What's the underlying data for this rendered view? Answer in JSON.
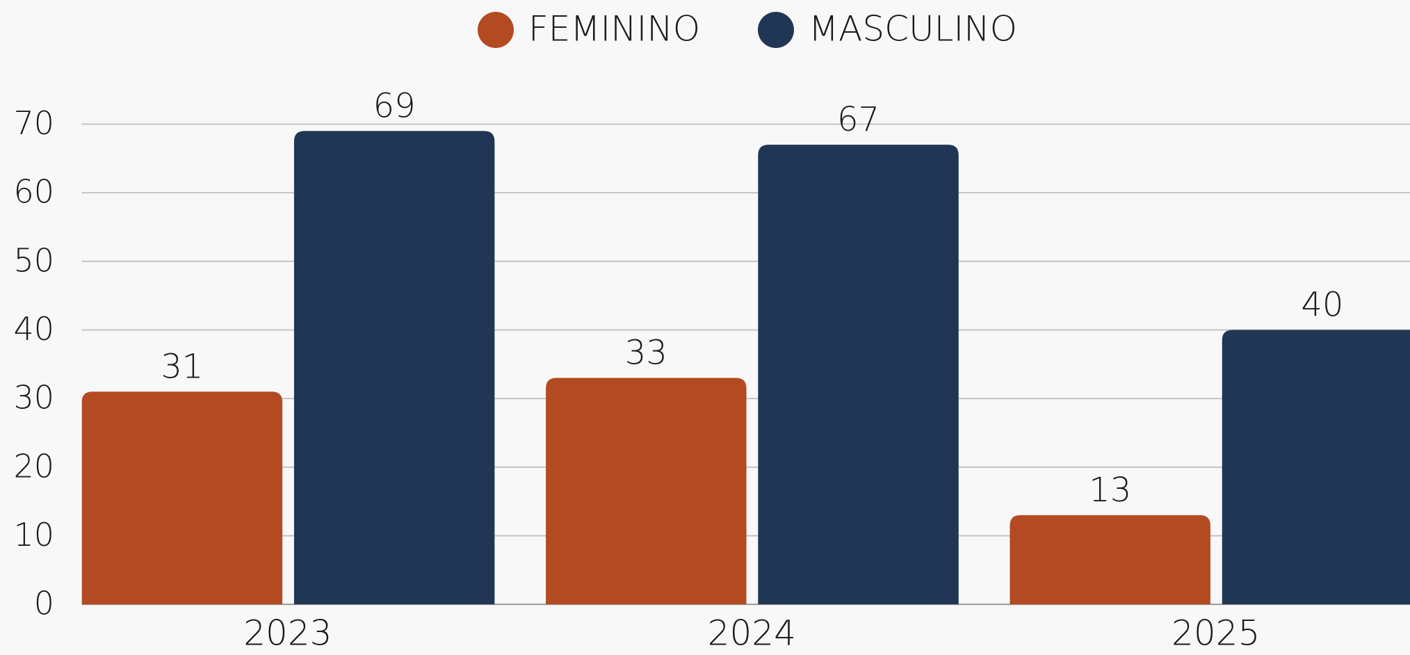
{
  "chart_data": {
    "type": "bar",
    "categories": [
      "2023",
      "2024",
      "2025"
    ],
    "series": [
      {
        "name": "FEMININO",
        "color": "#b34a22",
        "values": [
          31,
          33,
          13
        ]
      },
      {
        "name": "MASCULINO",
        "color": "#213654",
        "values": [
          69,
          67,
          40
        ]
      }
    ],
    "ylim": [
      0,
      70
    ],
    "yticks": [
      0,
      10,
      20,
      30,
      40,
      50,
      60,
      70
    ],
    "grid": true,
    "legend": "top"
  }
}
